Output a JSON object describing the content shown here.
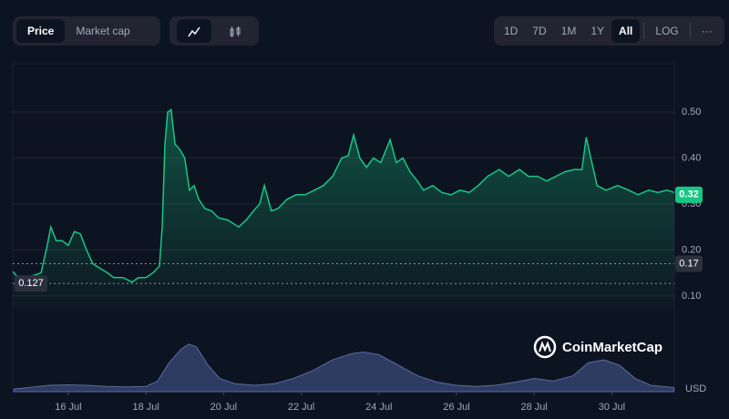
{
  "toolbar": {
    "views": [
      "Price",
      "Market cap"
    ],
    "ranges": [
      "1D",
      "7D",
      "1M",
      "1Y",
      "All"
    ],
    "scale": "LOG",
    "more": "···"
  },
  "brand": "CoinMarketCap",
  "chart_data": {
    "type": "line",
    "color": "#16c784",
    "y_unit": "USD",
    "x": [
      14.57,
      14.71,
      14.94,
      15.3,
      15.46,
      15.55,
      15.69,
      15.84,
      16.0,
      16.16,
      16.31,
      16.47,
      16.63,
      16.82,
      17.01,
      17.17,
      17.41,
      17.64,
      17.81,
      18.0,
      18.18,
      18.35,
      18.42,
      18.49,
      18.56,
      18.65,
      18.75,
      18.86,
      19.0,
      19.12,
      19.24,
      19.36,
      19.52,
      19.69,
      19.87,
      20.11,
      20.39,
      20.58,
      20.77,
      20.93,
      21.05,
      21.23,
      21.4,
      21.63,
      21.87,
      22.1,
      22.34,
      22.57,
      22.81,
      23.04,
      23.21,
      23.35,
      23.51,
      23.68,
      23.86,
      24.05,
      24.29,
      24.45,
      24.62,
      24.8,
      24.99,
      25.15,
      25.39,
      25.62,
      25.86,
      26.09,
      26.33,
      26.56,
      26.8,
      27.1,
      27.34,
      27.62,
      27.85,
      28.09,
      28.32,
      28.56,
      28.79,
      29.03,
      29.23,
      29.34,
      29.46,
      29.62,
      29.85,
      30.15,
      30.44,
      30.67,
      30.95,
      31.19,
      31.42,
      31.61
    ],
    "values": [
      0.153,
      0.14,
      0.14,
      0.15,
      0.21,
      0.25,
      0.22,
      0.22,
      0.21,
      0.24,
      0.235,
      0.2,
      0.17,
      0.16,
      0.15,
      0.14,
      0.14,
      0.13,
      0.14,
      0.14,
      0.15,
      0.165,
      0.25,
      0.43,
      0.5,
      0.505,
      0.43,
      0.42,
      0.4,
      0.33,
      0.34,
      0.31,
      0.29,
      0.285,
      0.27,
      0.265,
      0.25,
      0.265,
      0.285,
      0.3,
      0.34,
      0.285,
      0.29,
      0.31,
      0.32,
      0.32,
      0.33,
      0.34,
      0.36,
      0.4,
      0.405,
      0.45,
      0.4,
      0.38,
      0.4,
      0.39,
      0.44,
      0.39,
      0.4,
      0.37,
      0.35,
      0.33,
      0.34,
      0.325,
      0.32,
      0.33,
      0.325,
      0.34,
      0.36,
      0.375,
      0.36,
      0.375,
      0.36,
      0.36,
      0.35,
      0.36,
      0.37,
      0.375,
      0.375,
      0.445,
      0.4,
      0.34,
      0.33,
      0.34,
      0.33,
      0.32,
      0.33,
      0.325,
      0.33,
      0.325
    ],
    "volume_x": [
      14.6,
      15,
      15.5,
      16,
      16.5,
      17,
      17.5,
      18,
      18.3,
      18.6,
      18.9,
      19.1,
      19.3,
      19.6,
      19.9,
      20.3,
      20.8,
      21.3,
      21.8,
      22.3,
      22.8,
      23.3,
      23.6,
      24,
      24.5,
      25,
      25.5,
      26,
      26.5,
      27,
      27.5,
      28,
      28.5,
      29,
      29.4,
      29.8,
      30.2,
      30.6,
      31,
      31.6
    ],
    "volume_values": [
      5,
      8,
      12,
      13,
      12,
      10,
      9,
      10,
      20,
      55,
      80,
      90,
      85,
      50,
      25,
      15,
      12,
      15,
      25,
      40,
      60,
      72,
      75,
      70,
      50,
      30,
      18,
      12,
      10,
      12,
      18,
      25,
      20,
      30,
      55,
      60,
      50,
      25,
      12,
      8
    ],
    "volume_color": "#3a4a78",
    "xlim": [
      14.57,
      31.61
    ],
    "ylim": [
      0.07,
      0.605
    ],
    "y2lim": [
      0,
      100
    ],
    "xticks": [
      {
        "value": 16,
        "label": "16 Jul"
      },
      {
        "value": 18,
        "label": "18 Jul"
      },
      {
        "value": 20,
        "label": "20 Jul"
      },
      {
        "value": 22,
        "label": "22 Jul"
      },
      {
        "value": 24,
        "label": "24 Jul"
      },
      {
        "value": 26,
        "label": "26 Jul"
      },
      {
        "value": 28,
        "label": "28 Jul"
      },
      {
        "value": 30,
        "label": "30 Jul"
      }
    ],
    "yticks": [
      {
        "value": 0.1,
        "label": "0.10"
      },
      {
        "value": 0.2,
        "label": "0.20"
      },
      {
        "value": 0.3,
        "label": "0.30"
      },
      {
        "value": 0.4,
        "label": "0.40"
      },
      {
        "value": 0.5,
        "label": "0.50"
      }
    ],
    "grid": true,
    "last_price": 0.32,
    "reference_lines": [
      0.17,
      0.127
    ]
  }
}
